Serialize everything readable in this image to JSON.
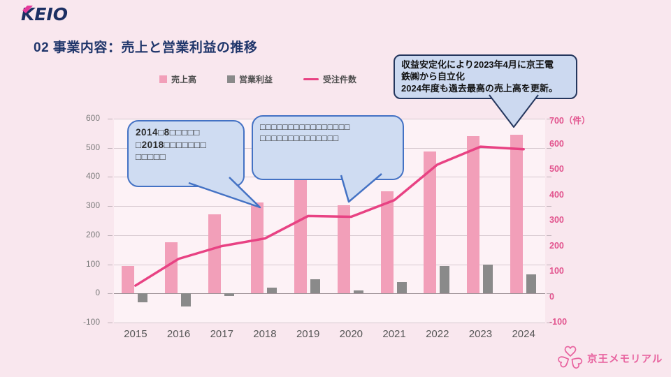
{
  "slide": {
    "brand_logo": "KEIO",
    "slide_number": "02",
    "title": "事業内容：売上と営業利益の推移",
    "footer_logo_text": "京王メモリアル"
  },
  "callouts": [
    {
      "id": "left",
      "lines": [
        "2014□8□□□□□",
        "□2018□□□□□□□",
        "□□□□□"
      ]
    },
    {
      "id": "middle",
      "lines": [
        "□□□□□□□□□□□□□□□□",
        "□□□□□□□□□□□□□□"
      ]
    },
    {
      "id": "right",
      "lines": [
        "収益安定化により2023年4月に京王電",
        "鉄㈱から自立化",
        "2024年度も過去最高の売上高を更新。"
      ]
    }
  ],
  "chart_data": {
    "type": "bar",
    "subtype": "combo-bar-line-dual-axis",
    "categories": [
      "2015",
      "2016",
      "2017",
      "2018",
      "2019",
      "2020",
      "2021",
      "2022",
      "2023",
      "2024"
    ],
    "series": [
      {
        "name": "売上高",
        "kind": "bar",
        "axis": "left",
        "color": "#f29fb9",
        "values": [
          95,
          175,
          272,
          312,
          390,
          302,
          350,
          487,
          540,
          545
        ]
      },
      {
        "name": "営業利益",
        "kind": "bar",
        "axis": "left",
        "color": "#8a8a8a",
        "values": [
          -30,
          -45,
          -8,
          20,
          48,
          10,
          40,
          95,
          98,
          65
        ]
      },
      {
        "name": "受注件数",
        "kind": "line",
        "axis": "right",
        "color": "#e84283",
        "values": [
          45,
          150,
          200,
          230,
          318,
          315,
          380,
          520,
          590,
          580
        ]
      }
    ],
    "left_axis": {
      "min": -100,
      "max": 600,
      "step": 100
    },
    "right_axis": {
      "min": -100,
      "max": 700,
      "step": 100,
      "unit": "（件）"
    },
    "grid": true,
    "legend_position": "top"
  },
  "colors": {
    "background": "#f9e7ee",
    "plot_background": "#fdf2f6",
    "title_navy": "#20366b",
    "logo_pink": "#e5399b",
    "right_axis_pink": "#e2548e",
    "callout_fill": "#cfdcf2",
    "callout_border_blue": "#4472c4",
    "callout_border_navy": "#24365d",
    "memorial_pink": "#e8639f"
  }
}
